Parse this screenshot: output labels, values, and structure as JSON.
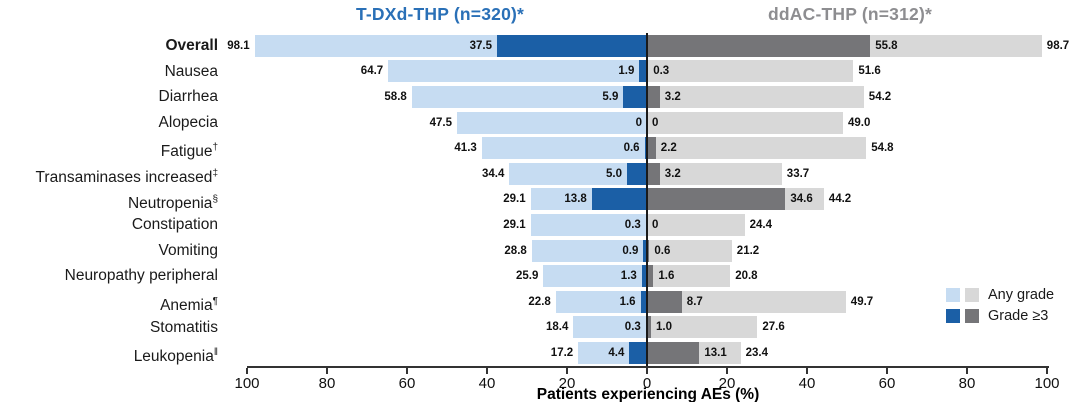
{
  "header": {
    "left_title": "T-DXd-THP (n=320)*",
    "right_title": "ddAC-THP (n=312)*"
  },
  "colors": {
    "tdxd_any": "#c6dcf2",
    "tdxd_grade3": "#1b5fa6",
    "ddac_any": "#d8d8d8",
    "ddac_grade3": "#757578",
    "tdxd_title": "#2a70b7",
    "ddac_title": "#8d8d90"
  },
  "legend": {
    "any_grade_label": "Any grade",
    "grade3_label": "Grade ≥3"
  },
  "chart_data": {
    "type": "bar",
    "variant": "diverging-butterfly",
    "left_series_name": "T-DXd-THP (n=320)*",
    "right_series_name": "ddAC-THP (n=312)*",
    "xlabel": "Patients experiencing AEs (%)",
    "axis_ticks": [
      "100",
      "80",
      "60",
      "40",
      "20",
      "0",
      "20",
      "40",
      "60",
      "80",
      "100"
    ],
    "xlim_each_side": [
      0,
      100
    ],
    "grid": false,
    "legend_position": "right-bottom",
    "rows": [
      {
        "label": "Overall",
        "sup": "",
        "bold": true,
        "tdxd_any": "98.1",
        "tdxd_g3": "37.5",
        "ddac_g3": "55.8",
        "ddac_any": "98.7"
      },
      {
        "label": "Nausea",
        "sup": "",
        "bold": false,
        "tdxd_any": "64.7",
        "tdxd_g3": "1.9",
        "ddac_g3": "0.3",
        "ddac_any": "51.6"
      },
      {
        "label": "Diarrhea",
        "sup": "",
        "bold": false,
        "tdxd_any": "58.8",
        "tdxd_g3": "5.9",
        "ddac_g3": "3.2",
        "ddac_any": "54.2"
      },
      {
        "label": "Alopecia",
        "sup": "",
        "bold": false,
        "tdxd_any": "47.5",
        "tdxd_g3": "0",
        "ddac_g3": "0",
        "ddac_any": "49.0"
      },
      {
        "label": "Fatigue",
        "sup": "†",
        "bold": false,
        "tdxd_any": "41.3",
        "tdxd_g3": "0.6",
        "ddac_g3": "2.2",
        "ddac_any": "54.8"
      },
      {
        "label": "Transaminases increased",
        "sup": "‡",
        "bold": false,
        "tdxd_any": "34.4",
        "tdxd_g3": "5.0",
        "ddac_g3": "3.2",
        "ddac_any": "33.7"
      },
      {
        "label": "Neutropenia",
        "sup": "§",
        "bold": false,
        "tdxd_any": "29.1",
        "tdxd_g3": "13.8",
        "ddac_g3": "34.6",
        "ddac_any": "44.2"
      },
      {
        "label": "Constipation",
        "sup": "",
        "bold": false,
        "tdxd_any": "29.1",
        "tdxd_g3": "0.3",
        "ddac_g3": "0",
        "ddac_any": "24.4"
      },
      {
        "label": "Vomiting",
        "sup": "",
        "bold": false,
        "tdxd_any": "28.8",
        "tdxd_g3": "0.9",
        "ddac_g3": "0.6",
        "ddac_any": "21.2"
      },
      {
        "label": "Neuropathy peripheral",
        "sup": "",
        "bold": false,
        "tdxd_any": "25.9",
        "tdxd_g3": "1.3",
        "ddac_g3": "1.6",
        "ddac_any": "20.8"
      },
      {
        "label": "Anemia",
        "sup": "¶",
        "bold": false,
        "tdxd_any": "22.8",
        "tdxd_g3": "1.6",
        "ddac_g3": "8.7",
        "ddac_any": "49.7"
      },
      {
        "label": "Stomatitis",
        "sup": "",
        "bold": false,
        "tdxd_any": "18.4",
        "tdxd_g3": "0.3",
        "ddac_g3": "1.0",
        "ddac_any": "27.6"
      },
      {
        "label": "Leukopenia",
        "sup": "‖",
        "bold": false,
        "tdxd_any": "17.2",
        "tdxd_g3": "4.4",
        "ddac_g3": "13.1",
        "ddac_any": "23.4"
      }
    ]
  }
}
